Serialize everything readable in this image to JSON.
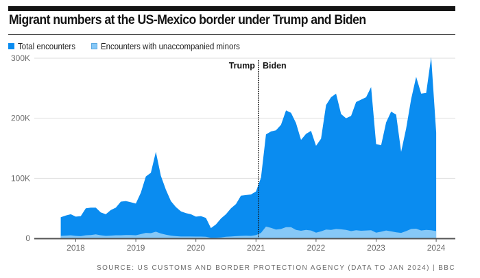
{
  "header": {
    "title": "Migrant numbers at the US-Mexico border under Trump and Biden"
  },
  "legend": [
    {
      "label": "Total encounters",
      "color": "#0a8cf0"
    },
    {
      "label": "Encounters with unaccompanied minors",
      "color": "#86c8f7"
    }
  ],
  "annotations": {
    "left_era": "Trump",
    "right_era": "Biden",
    "divider_date": "2021-01.5"
  },
  "footer": {
    "source": "SOURCE: US CUSTOMS AND BORDER PROTECTION AGENCY (DATA TO JAN 2024) | BBC"
  },
  "colors": {
    "total": "#0a8cf0",
    "minors": "#86c8f7",
    "grid": "#dddddd",
    "axis": "#555555"
  },
  "chart_data": {
    "type": "area",
    "title": "Migrant numbers at the US-Mexico border under Trump and Biden",
    "xlabel": "",
    "ylabel": "",
    "ylim": [
      0,
      300000
    ],
    "yticks": [
      0,
      100000,
      200000,
      300000
    ],
    "ytick_labels": [
      "0",
      "100K",
      "200K",
      "300K"
    ],
    "xticks": [
      {
        "label": "2018",
        "year": 2018
      },
      {
        "label": "2019",
        "year": 2019
      },
      {
        "label": "2020",
        "year": 2020
      },
      {
        "label": "2021",
        "year": 2021
      },
      {
        "label": "2022",
        "year": 2022
      },
      {
        "label": "2023",
        "year": 2023
      },
      {
        "label": "2024",
        "year": 2024
      }
    ],
    "grid": true,
    "legend_position": "top-left",
    "x_start": "2017-10",
    "x_end": "2024-01",
    "x": [
      "2017-10",
      "2017-11",
      "2017-12",
      "2018-01",
      "2018-02",
      "2018-03",
      "2018-04",
      "2018-05",
      "2018-06",
      "2018-07",
      "2018-08",
      "2018-09",
      "2018-10",
      "2018-11",
      "2018-12",
      "2019-01",
      "2019-02",
      "2019-03",
      "2019-04",
      "2019-05",
      "2019-06",
      "2019-07",
      "2019-08",
      "2019-09",
      "2019-10",
      "2019-11",
      "2019-12",
      "2020-01",
      "2020-02",
      "2020-03",
      "2020-04",
      "2020-05",
      "2020-06",
      "2020-07",
      "2020-08",
      "2020-09",
      "2020-10",
      "2020-11",
      "2020-12",
      "2021-01",
      "2021-02",
      "2021-03",
      "2021-04",
      "2021-05",
      "2021-06",
      "2021-07",
      "2021-08",
      "2021-09",
      "2021-10",
      "2021-11",
      "2021-12",
      "2022-01",
      "2022-02",
      "2022-03",
      "2022-04",
      "2022-05",
      "2022-06",
      "2022-07",
      "2022-08",
      "2022-09",
      "2022-10",
      "2022-11",
      "2022-12",
      "2023-01",
      "2023-02",
      "2023-03",
      "2023-04",
      "2023-05",
      "2023-06",
      "2023-07",
      "2023-08",
      "2023-09",
      "2023-10",
      "2023-11",
      "2023-12",
      "2024-01"
    ],
    "series": [
      {
        "name": "Total encounters",
        "values": [
          35000,
          38000,
          40000,
          36000,
          37000,
          50000,
          51000,
          51000,
          43000,
          40000,
          47000,
          51000,
          61000,
          62000,
          60000,
          58000,
          76000,
          103000,
          109000,
          144000,
          104000,
          81000,
          62000,
          52000,
          45000,
          42000,
          40000,
          36000,
          37000,
          34000,
          17000,
          23000,
          33000,
          40000,
          50000,
          57000,
          71000,
          72000,
          73000,
          78000,
          101000,
          173000,
          178000,
          180000,
          189000,
          213000,
          209000,
          192000,
          164000,
          174000,
          179000,
          154000,
          166000,
          222000,
          235000,
          241000,
          207000,
          200000,
          204000,
          227000,
          231000,
          235000,
          252000,
          157000,
          155000,
          193000,
          211000,
          206000,
          144000,
          183000,
          232000,
          269000,
          241000,
          242000,
          302000,
          176000
        ]
      },
      {
        "name": "Encounters with unaccompanied minors",
        "values": [
          4000,
          4500,
          5000,
          4000,
          3500,
          5000,
          5500,
          6500,
          5000,
          4000,
          4500,
          5000,
          5000,
          5500,
          5500,
          5000,
          7000,
          9000,
          8500,
          11000,
          8000,
          6000,
          4500,
          3500,
          3000,
          3000,
          3000,
          2800,
          2800,
          2500,
          800,
          1000,
          1500,
          2500,
          3000,
          3500,
          4000,
          4200,
          4000,
          5200,
          9000,
          19500,
          17500,
          14500,
          15500,
          18500,
          18500,
          14000,
          12500,
          14000,
          13000,
          9500,
          11500,
          14500,
          14000,
          15500,
          15000,
          14000,
          12000,
          13500,
          12500,
          13000,
          13500,
          9500,
          11000,
          13000,
          11500,
          10000,
          9000,
          12000,
          15500,
          16000,
          13000,
          14000,
          13500,
          12000
        ]
      }
    ]
  }
}
